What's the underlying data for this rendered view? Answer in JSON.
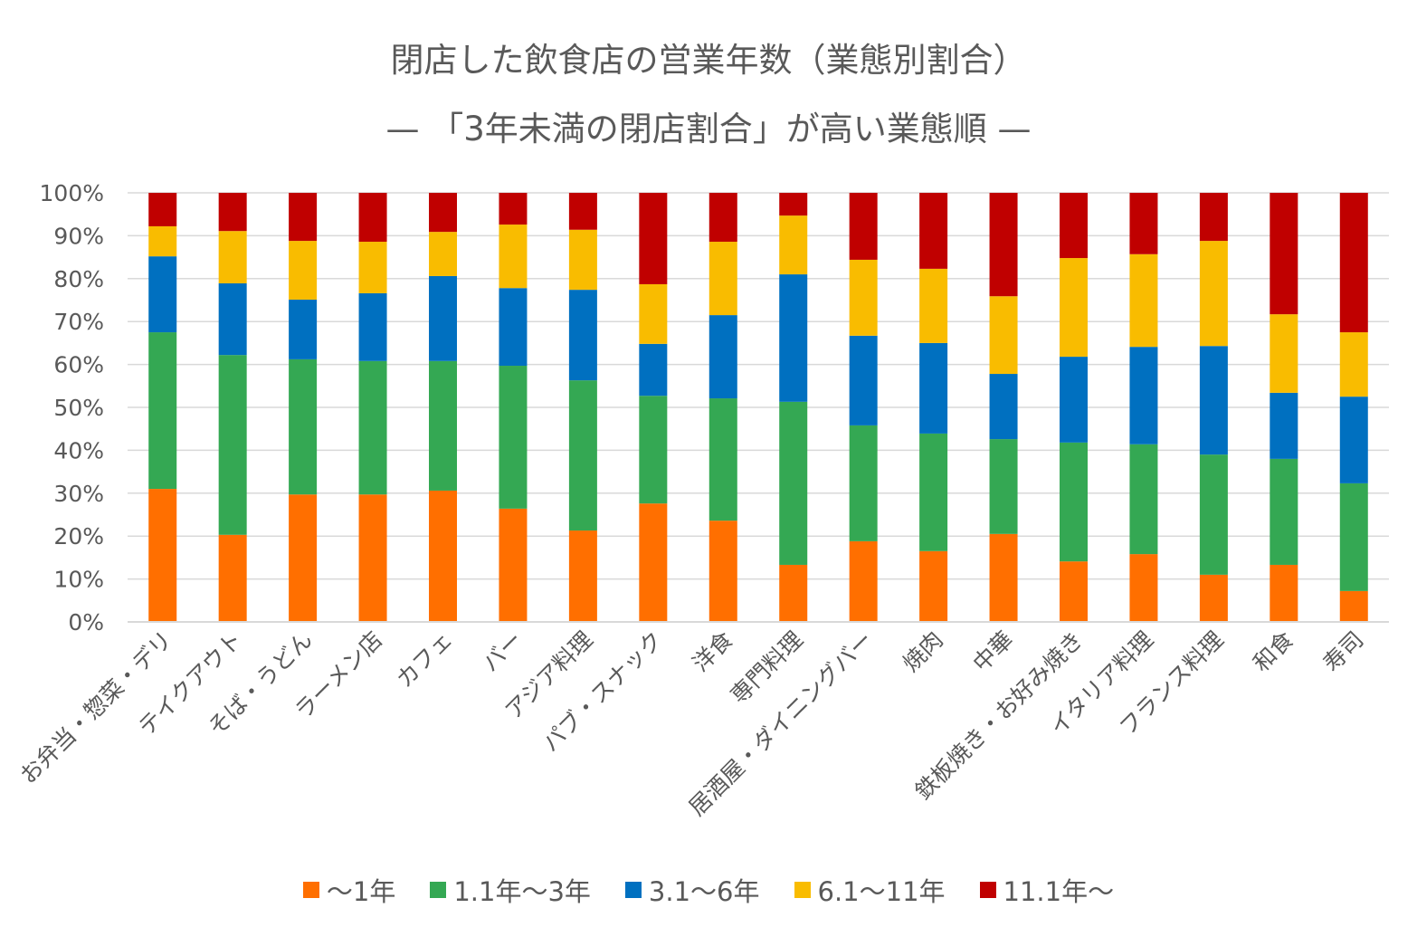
{
  "chart_data": {
    "type": "bar",
    "stacked": true,
    "title": "閉店した飲食店の営業年数（業態別割合）",
    "subtitle": "— 「3年未満の閉店割合」が高い業態順 —",
    "xlabel": "",
    "ylabel": "",
    "ylim": [
      0,
      100
    ],
    "yticks": [
      "0%",
      "10%",
      "20%",
      "30%",
      "40%",
      "50%",
      "60%",
      "70%",
      "80%",
      "90%",
      "100%"
    ],
    "grid": true,
    "legend_position": "bottom",
    "categories": [
      "お弁当・惣菜・デリ",
      "テイクアウト",
      "そば・うどん",
      "ラーメン店",
      "カフェ",
      "バー",
      "アジア料理",
      "パブ・スナック",
      "洋食",
      "専門料理",
      "居酒屋・ダイニングバー",
      "焼肉",
      "中華",
      "鉄板焼き・お好み焼き",
      "イタリア料理",
      "フランス料理",
      "和食",
      "寿司"
    ],
    "series": [
      {
        "name": "～1年",
        "color": "#FF6F00",
        "values": [
          31.0,
          20.3,
          29.7,
          29.7,
          30.6,
          26.4,
          21.3,
          27.6,
          23.6,
          13.3,
          18.8,
          16.5,
          20.5,
          14.1,
          15.8,
          11.0,
          13.3,
          7.2
        ]
      },
      {
        "name": "1.1年～3年",
        "color": "#34A853",
        "values": [
          36.5,
          41.9,
          31.5,
          31.1,
          30.2,
          33.3,
          35.0,
          25.1,
          28.5,
          38.0,
          27.0,
          27.4,
          22.1,
          27.7,
          25.6,
          28.0,
          24.7,
          25.1
        ]
      },
      {
        "name": "3.1～6年",
        "color": "#0070C0",
        "values": [
          17.7,
          16.7,
          13.9,
          15.8,
          19.8,
          18.1,
          21.1,
          12.1,
          19.4,
          29.7,
          20.9,
          21.1,
          15.2,
          20.0,
          22.7,
          25.3,
          15.4,
          20.2
        ]
      },
      {
        "name": "6.1～11年",
        "color": "#F9BC00",
        "values": [
          7.0,
          12.2,
          13.7,
          12.0,
          10.3,
          14.8,
          14.0,
          13.9,
          17.1,
          13.7,
          17.7,
          17.3,
          18.1,
          23.0,
          21.6,
          24.5,
          18.3,
          15.0
        ]
      },
      {
        "name": "11.1年～",
        "color": "#C00000",
        "values": [
          7.8,
          8.9,
          11.2,
          11.4,
          9.1,
          7.4,
          8.6,
          21.3,
          11.4,
          5.3,
          15.6,
          17.7,
          24.1,
          15.2,
          14.3,
          11.2,
          28.3,
          32.5
        ]
      }
    ]
  }
}
